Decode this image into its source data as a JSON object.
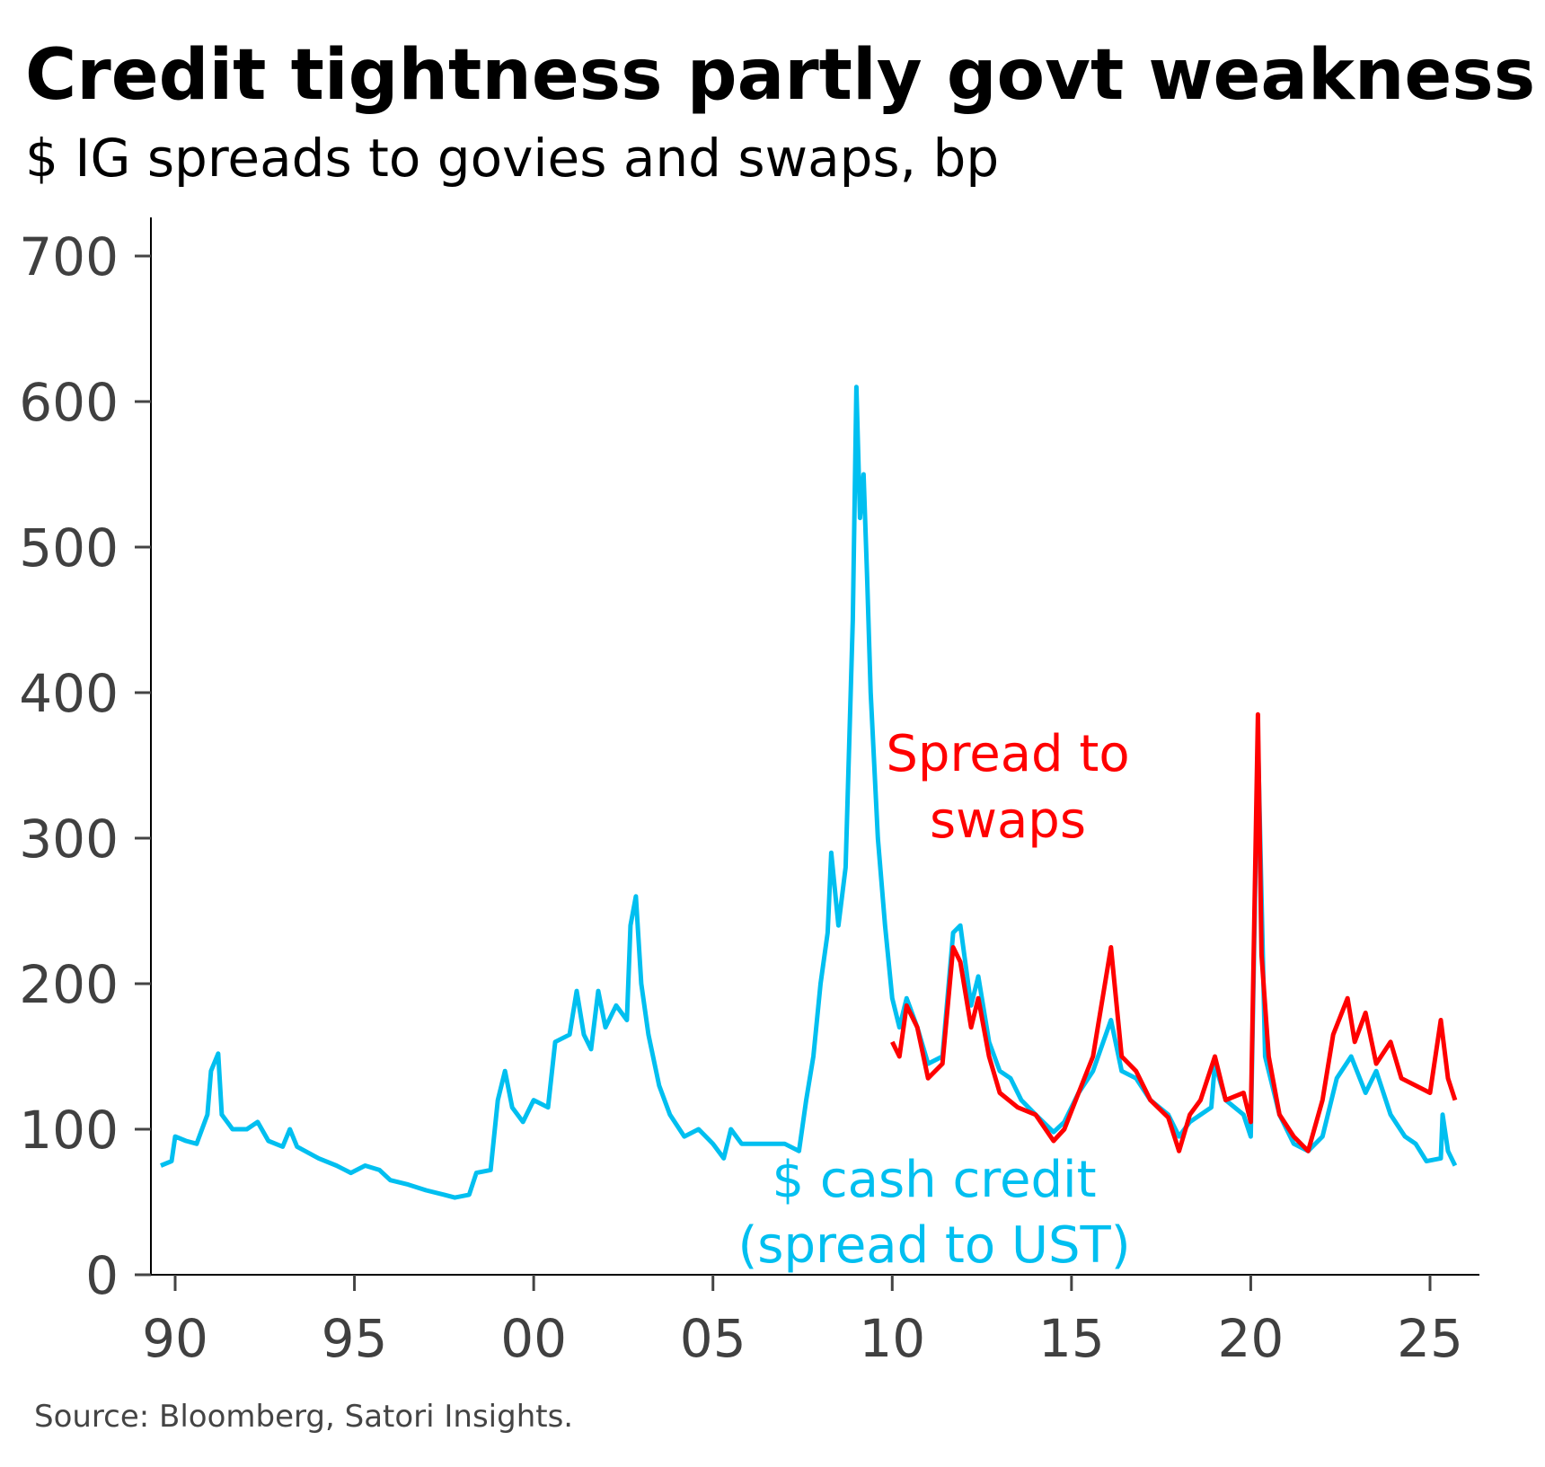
{
  "chart_data": {
    "type": "line",
    "title": "Credit tightness partly govt weakness",
    "subtitle": "$ IG spreads to govies and swaps, bp",
    "source": "Source: Bloomberg, Satori Insights.",
    "xlabel": "",
    "ylabel": "",
    "xlim": [
      1989.6,
      2026.3
    ],
    "ylim": [
      0,
      700
    ],
    "yticks": [
      0,
      100,
      200,
      300,
      400,
      500,
      600,
      700
    ],
    "xticks": [
      1990,
      1995,
      2000,
      2005,
      2010,
      2015,
      2020,
      2025
    ],
    "xtick_labels": [
      "90",
      "95",
      "00",
      "05",
      "10",
      "15",
      "20",
      "25"
    ],
    "grid": false,
    "series": [
      {
        "name": "$ cash credit (spread to UST)",
        "label_lines": [
          "$ cash credit",
          "(spread to UST)"
        ],
        "color": "#00bff0",
        "x": [
          1989.6,
          1989.9,
          1990.0,
          1990.3,
          1990.6,
          1990.9,
          1991.0,
          1991.2,
          1991.3,
          1991.6,
          1992.0,
          1992.3,
          1992.6,
          1993.0,
          1993.2,
          1993.4,
          1994.0,
          1994.5,
          1994.9,
          1995.3,
          1995.7,
          1996.0,
          1996.5,
          1997.0,
          1997.5,
          1997.8,
          1998.2,
          1998.4,
          1998.8,
          1999.0,
          1999.2,
          1999.4,
          1999.7,
          2000.0,
          2000.4,
          2000.6,
          2001.0,
          2001.2,
          2001.4,
          2001.6,
          2001.8,
          2002.0,
          2002.3,
          2002.6,
          2002.7,
          2002.85,
          2003.0,
          2003.2,
          2003.5,
          2003.8,
          2004.2,
          2004.6,
          2005.0,
          2005.3,
          2005.5,
          2005.8,
          2006.5,
          2007.0,
          2007.4,
          2007.6,
          2007.8,
          2008.0,
          2008.2,
          2008.3,
          2008.5,
          2008.7,
          2008.9,
          2009.0,
          2009.1,
          2009.2,
          2009.3,
          2009.4,
          2009.6,
          2009.8,
          2010.0,
          2010.2,
          2010.4,
          2010.7,
          2011.0,
          2011.4,
          2011.7,
          2011.9,
          2012.2,
          2012.4,
          2012.7,
          2013.0,
          2013.3,
          2013.6,
          2014.0,
          2014.5,
          2014.8,
          2015.2,
          2015.6,
          2016.1,
          2016.4,
          2016.8,
          2017.2,
          2017.7,
          2018.0,
          2018.3,
          2018.9,
          2019.0,
          2019.3,
          2019.8,
          2020.0,
          2020.2,
          2020.4,
          2020.8,
          2021.2,
          2021.6,
          2022.0,
          2022.4,
          2022.8,
          2023.2,
          2023.5,
          2023.9,
          2024.3,
          2024.6,
          2024.9,
          2025.3,
          2025.35,
          2025.5,
          2025.7
        ],
        "y": [
          75,
          78,
          95,
          92,
          90,
          110,
          140,
          152,
          110,
          100,
          100,
          105,
          92,
          88,
          100,
          88,
          80,
          75,
          70,
          75,
          72,
          65,
          62,
          58,
          55,
          53,
          55,
          70,
          72,
          120,
          140,
          115,
          105,
          120,
          115,
          160,
          165,
          195,
          165,
          155,
          195,
          170,
          185,
          175,
          240,
          260,
          200,
          165,
          130,
          110,
          95,
          100,
          90,
          80,
          100,
          90,
          90,
          90,
          85,
          120,
          150,
          200,
          235,
          290,
          240,
          280,
          450,
          610,
          520,
          550,
          480,
          400,
          300,
          240,
          190,
          170,
          190,
          170,
          145,
          150,
          235,
          240,
          185,
          205,
          160,
          140,
          135,
          120,
          110,
          98,
          105,
          125,
          140,
          175,
          140,
          135,
          120,
          110,
          95,
          105,
          115,
          145,
          120,
          110,
          95,
          370,
          150,
          110,
          90,
          85,
          95,
          135,
          150,
          125,
          140,
          110,
          95,
          90,
          78,
          80,
          110,
          85,
          75
        ]
      },
      {
        "name": "Spread to swaps",
        "label_lines": [
          "Spread to",
          "swaps"
        ],
        "color": "#ff0000",
        "x": [
          2010.0,
          2010.2,
          2010.4,
          2010.7,
          2011.0,
          2011.4,
          2011.7,
          2011.9,
          2012.2,
          2012.4,
          2012.7,
          2013.0,
          2013.5,
          2014.0,
          2014.5,
          2014.8,
          2015.2,
          2015.6,
          2016.1,
          2016.4,
          2016.8,
          2017.2,
          2017.7,
          2018.0,
          2018.3,
          2018.6,
          2019.0,
          2019.3,
          2019.8,
          2020.0,
          2020.2,
          2020.3,
          2020.5,
          2020.8,
          2021.2,
          2021.6,
          2022.0,
          2022.3,
          2022.7,
          2022.9,
          2023.2,
          2023.5,
          2023.9,
          2024.2,
          2024.6,
          2025.0,
          2025.3,
          2025.5,
          2025.7
        ],
        "y": [
          160,
          150,
          185,
          170,
          135,
          145,
          225,
          215,
          170,
          190,
          150,
          125,
          115,
          110,
          92,
          100,
          125,
          150,
          225,
          150,
          140,
          120,
          108,
          85,
          110,
          120,
          150,
          120,
          125,
          105,
          385,
          220,
          150,
          110,
          95,
          85,
          120,
          165,
          190,
          160,
          180,
          145,
          160,
          135,
          130,
          125,
          175,
          135,
          120
        ]
      }
    ]
  }
}
